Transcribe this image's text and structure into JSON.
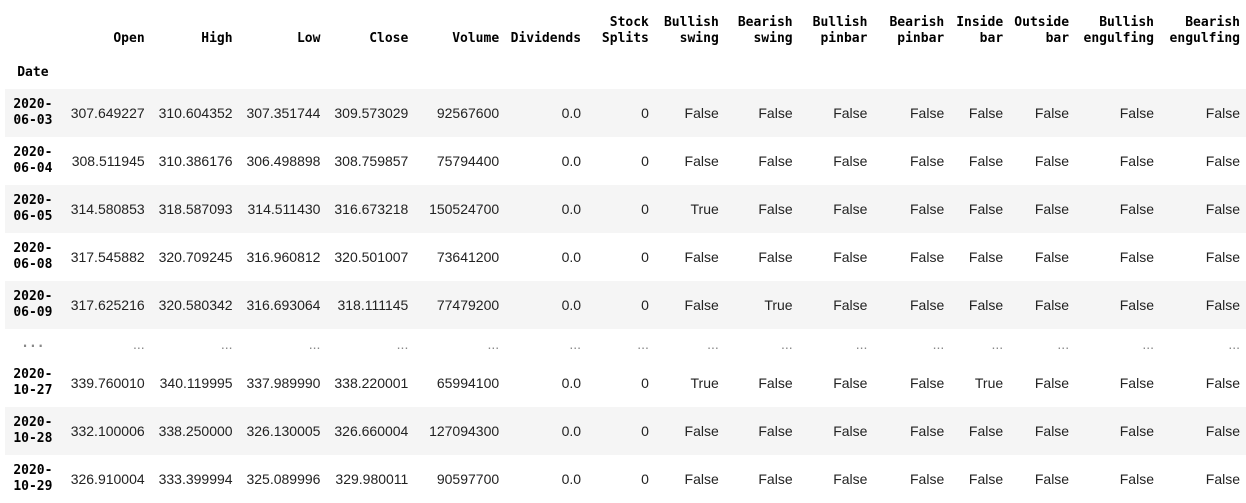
{
  "table": {
    "index_name": "Date",
    "columns": [
      [
        "",
        "Open"
      ],
      [
        "",
        "High"
      ],
      [
        "",
        "Low"
      ],
      [
        "",
        "Close"
      ],
      [
        "",
        "Volume"
      ],
      [
        "",
        "Dividends"
      ],
      [
        "Stock",
        "Splits"
      ],
      [
        "Bullish",
        "swing"
      ],
      [
        "Bearish",
        "swing"
      ],
      [
        "Bullish",
        "pinbar"
      ],
      [
        "Bearish",
        "pinbar"
      ],
      [
        "Inside",
        "bar"
      ],
      [
        "Outside",
        "bar"
      ],
      [
        "Bullish",
        "engulfing"
      ],
      [
        "Bearish",
        "engulfing"
      ]
    ],
    "rows": [
      {
        "index": [
          "2020-",
          "06-03"
        ],
        "cells": [
          "307.649227",
          "310.604352",
          "307.351744",
          "309.573029",
          "92567600",
          "0.0",
          "0",
          "False",
          "False",
          "False",
          "False",
          "False",
          "False",
          "False",
          "False"
        ]
      },
      {
        "index": [
          "2020-",
          "06-04"
        ],
        "cells": [
          "308.511945",
          "310.386176",
          "306.498898",
          "308.759857",
          "75794400",
          "0.0",
          "0",
          "False",
          "False",
          "False",
          "False",
          "False",
          "False",
          "False",
          "False"
        ]
      },
      {
        "index": [
          "2020-",
          "06-05"
        ],
        "cells": [
          "314.580853",
          "318.587093",
          "314.511430",
          "316.673218",
          "150524700",
          "0.0",
          "0",
          "True",
          "False",
          "False",
          "False",
          "False",
          "False",
          "False",
          "False"
        ]
      },
      {
        "index": [
          "2020-",
          "06-08"
        ],
        "cells": [
          "317.545882",
          "320.709245",
          "316.960812",
          "320.501007",
          "73641200",
          "0.0",
          "0",
          "False",
          "False",
          "False",
          "False",
          "False",
          "False",
          "False",
          "False"
        ]
      },
      {
        "index": [
          "2020-",
          "06-09"
        ],
        "cells": [
          "317.625216",
          "320.580342",
          "316.693064",
          "318.111145",
          "77479200",
          "0.0",
          "0",
          "False",
          "True",
          "False",
          "False",
          "False",
          "False",
          "False",
          "False"
        ]
      },
      {
        "index": [
          "...",
          ""
        ],
        "cells": [
          "...",
          "...",
          "...",
          "...",
          "...",
          "...",
          "...",
          "...",
          "...",
          "...",
          "...",
          "...",
          "...",
          "...",
          "..."
        ],
        "ellipsis": true
      },
      {
        "index": [
          "2020-",
          "10-27"
        ],
        "cells": [
          "339.760010",
          "340.119995",
          "337.989990",
          "338.220001",
          "65994100",
          "0.0",
          "0",
          "True",
          "False",
          "False",
          "False",
          "True",
          "False",
          "False",
          "False"
        ]
      },
      {
        "index": [
          "2020-",
          "10-28"
        ],
        "cells": [
          "332.100006",
          "338.250000",
          "326.130005",
          "326.660004",
          "127094300",
          "0.0",
          "0",
          "False",
          "False",
          "False",
          "False",
          "False",
          "False",
          "False",
          "False"
        ]
      },
      {
        "index": [
          "2020-",
          "10-29"
        ],
        "cells": [
          "326.910004",
          "333.399994",
          "325.089996",
          "329.980011",
          "90597700",
          "0.0",
          "0",
          "False",
          "False",
          "False",
          "False",
          "False",
          "False",
          "False",
          "False"
        ]
      }
    ]
  },
  "colors": {
    "stripe": "#f5f5f5",
    "text": "#222222",
    "ellipsis": "#888888"
  }
}
